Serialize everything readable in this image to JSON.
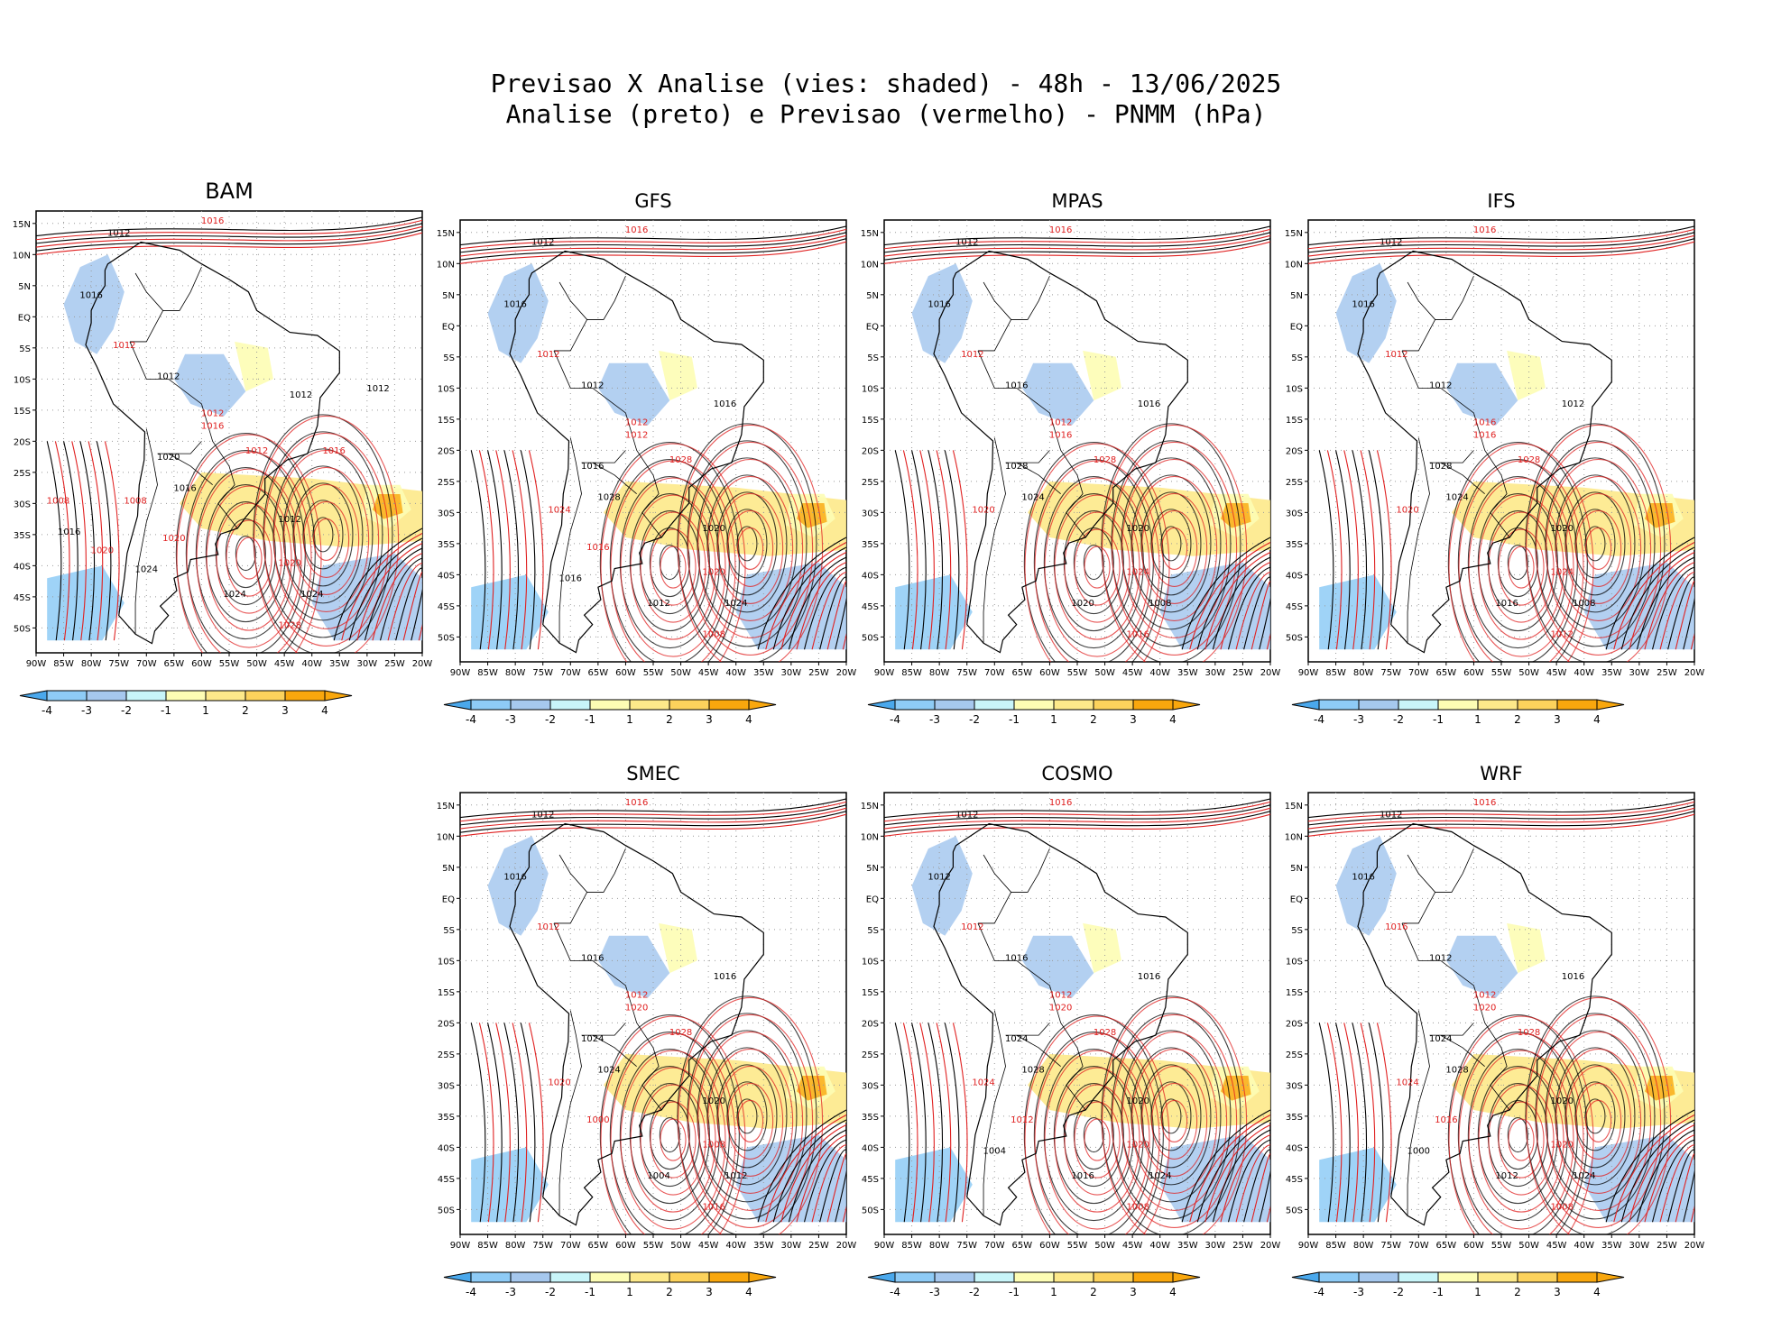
{
  "header": {
    "title_line1": "Previsao X Analise (vies: shaded) - 48h - 13/06/2025",
    "title_line2": "Analise (preto) e Previsao (vermelho) - PNMM (hPa)"
  },
  "colors": {
    "neg4": "#4aa8ec",
    "neg3": "#8ecbf6",
    "neg2": "#a6c8ee",
    "neg1": "#c8f5f9",
    "pos1": "#fdfdb4",
    "pos2": "#fde98a",
    "pos3": "#fcd25c",
    "pos4": "#f9a70d",
    "analysis_contour": "#000000",
    "forecast_contour": "#e02020"
  },
  "colorbar_labels": [
    "-4",
    "-3",
    "-2",
    "-1",
    "1",
    "2",
    "3",
    "4"
  ],
  "lat_labels": [
    "15N",
    "10N",
    "5N",
    "EQ",
    "5S",
    "10S",
    "15S",
    "20S",
    "25S",
    "30S",
    "35S",
    "40S",
    "45S",
    "50S"
  ],
  "lon_labels": [
    "90W",
    "85W",
    "80W",
    "75W",
    "70W",
    "65W",
    "60W",
    "55W",
    "50W",
    "45W",
    "40W",
    "35W",
    "30W",
    "25W",
    "20W"
  ],
  "panels": [
    {
      "name": "BAM",
      "labels": [
        "1012",
        "1016",
        "1016",
        "1012",
        "1012",
        "1012",
        "1012",
        "1016",
        "1020",
        "1012",
        "1016",
        "1008",
        "1012",
        "1020",
        "1024",
        "1028",
        "1024",
        "1020",
        "1024",
        "1020",
        "1016",
        "1008",
        "1012",
        "1016"
      ]
    },
    {
      "name": "GFS",
      "labels": [
        "1012",
        "1016",
        "1016",
        "1012",
        "1012",
        "1012",
        "1016",
        "1012",
        "1016",
        "1028",
        "1028",
        "1024",
        "1020",
        "1020",
        "1024",
        "1008",
        "1012",
        "1016",
        "1016"
      ]
    },
    {
      "name": "MPAS",
      "labels": [
        "1012",
        "1016",
        "1016",
        "1012",
        "1016",
        "1012",
        "1016",
        "1016",
        "1028",
        "1028",
        "1024",
        "1020",
        "1020",
        "1024",
        "1008",
        "1016",
        "1020"
      ]
    },
    {
      "name": "IFS",
      "labels": [
        "1012",
        "1016",
        "1016",
        "1012",
        "1012",
        "1016",
        "1012",
        "1016",
        "1028",
        "1028",
        "1024",
        "1020",
        "1020",
        "1024",
        "1008",
        "1012",
        "1016"
      ]
    },
    {
      "name": "SMEC",
      "labels": [
        "1012",
        "1016",
        "1016",
        "1012",
        "1016",
        "1012",
        "1016",
        "1020",
        "1024",
        "1028",
        "1024",
        "1020",
        "1020",
        "1008",
        "1012",
        "1016",
        "1004",
        "1000"
      ]
    },
    {
      "name": "COSMO",
      "labels": [
        "1012",
        "1016",
        "1012",
        "1012",
        "1016",
        "1012",
        "1016",
        "1020",
        "1024",
        "1028",
        "1028",
        "1024",
        "1020",
        "1020",
        "1024",
        "1008",
        "1016",
        "1012",
        "1004"
      ]
    },
    {
      "name": "WRF",
      "labels": [
        "1012",
        "1016",
        "1016",
        "1016",
        "1012",
        "1012",
        "1016",
        "1020",
        "1024",
        "1028",
        "1028",
        "1024",
        "1020",
        "1020",
        "1024",
        "1008",
        "1012",
        "1016",
        "1000"
      ]
    }
  ]
}
